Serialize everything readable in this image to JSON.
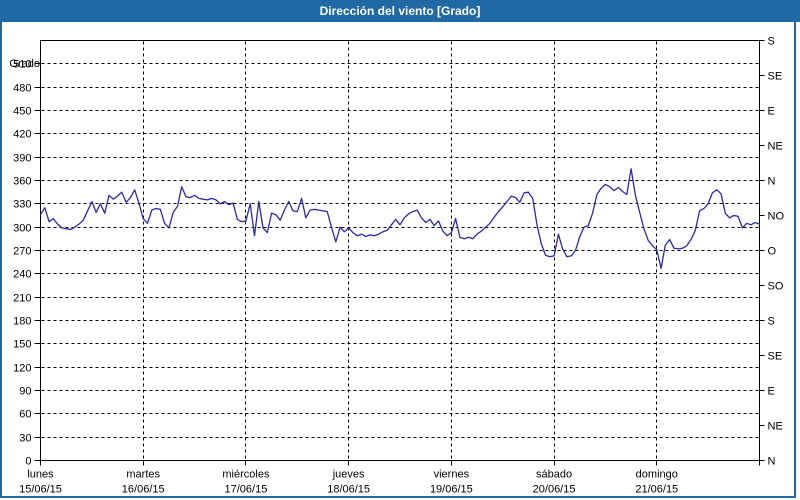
{
  "window": {
    "title": "Dirección del viento [Grado]"
  },
  "theme": {
    "titlebar_bg": "#1f69a5",
    "frame_border": "#1f69a5",
    "plot_bg": "#ffffff",
    "grid_color": "#000000",
    "axis_color": "#000000",
    "text_color": "#000000",
    "line_color": "#2b2ba8"
  },
  "chart_data": {
    "type": "line",
    "title": "Dirección del viento [Grado]",
    "ylabel": "Grado",
    "ylim": [
      0,
      540
    ],
    "y_tick_step": 30,
    "y_tick_min": 0,
    "y_tick_max": 510,
    "grid": "dashed",
    "right_axis": {
      "tick_step_deg": 45,
      "labels_bottom_to_top": [
        "N",
        "NE",
        "E",
        "SE",
        "S",
        "SO",
        "O",
        "NO",
        "N",
        "NE",
        "E",
        "SE",
        "S"
      ]
    },
    "days": [
      {
        "label": "lunes",
        "date": "15/06/15"
      },
      {
        "label": "martes",
        "date": "16/06/15"
      },
      {
        "label": "miércoles",
        "date": "17/06/15"
      },
      {
        "label": "jueves",
        "date": "18/06/15"
      },
      {
        "label": "viernes",
        "date": "19/06/15"
      },
      {
        "label": "sábado",
        "date": "20/06/15"
      },
      {
        "label": "domingo",
        "date": "21/06/15"
      }
    ],
    "x_total_hours": 168,
    "series": [
      {
        "name": "Dirección del viento",
        "unit": "Grado",
        "points_per_hour": 1,
        "values": [
          316,
          325,
          307,
          311,
          304,
          299,
          298,
          297,
          300,
          304,
          309,
          321,
          333,
          319,
          330,
          318,
          341,
          336,
          340,
          345,
          332,
          338,
          348,
          331,
          311,
          305,
          322,
          324,
          323,
          305,
          299,
          319,
          327,
          352,
          339,
          338,
          341,
          337,
          336,
          335,
          337,
          335,
          330,
          333,
          329,
          331,
          310,
          307,
          308,
          330,
          289,
          333,
          299,
          293,
          318,
          316,
          309,
          322,
          333,
          321,
          320,
          337,
          312,
          322,
          323,
          322,
          321,
          320,
          300,
          281,
          300,
          294,
          299,
          293,
          289,
          291,
          288,
          290,
          289,
          291,
          294,
          296,
          303,
          310,
          303,
          312,
          317,
          320,
          322,
          312,
          306,
          310,
          302,
          308,
          295,
          289,
          293,
          311,
          287,
          285,
          287,
          285,
          291,
          295,
          300,
          305,
          313,
          320,
          326,
          333,
          340,
          338,
          332,
          344,
          345,
          337,
          303,
          279,
          264,
          262,
          263,
          291,
          272,
          262,
          263,
          270,
          288,
          300,
          302,
          318,
          342,
          350,
          355,
          352,
          347,
          351,
          346,
          342,
          375,
          341,
          319,
          298,
          283,
          276,
          271,
          247,
          277,
          284,
          273,
          272,
          273,
          276,
          284,
          296,
          321,
          324,
          330,
          344,
          348,
          343,
          318,
          312,
          315,
          314,
          299,
          305,
          303,
          306,
          304
        ]
      }
    ]
  }
}
